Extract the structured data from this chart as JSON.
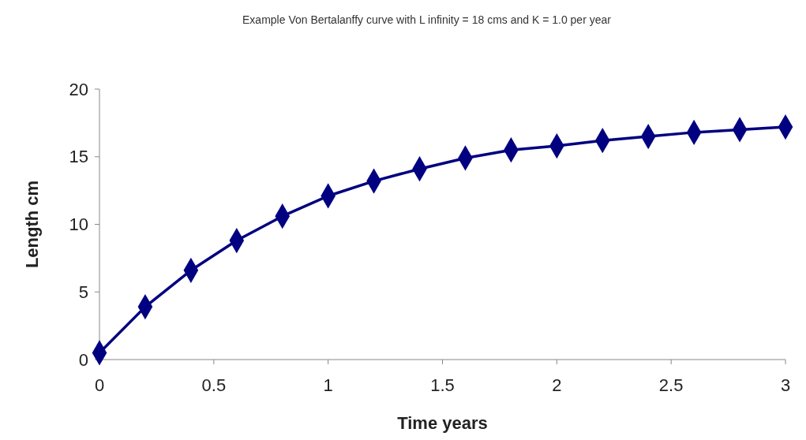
{
  "chart_data": {
    "type": "line",
    "title": "Example Von Bertalanffy curve with L infinity = 18 cms and K = 1.0 per year",
    "xlabel": "Time years",
    "ylabel": "Length cm",
    "x": [
      0,
      0.2,
      0.4,
      0.6,
      0.8,
      1,
      1.2,
      1.4,
      1.6,
      1.8,
      2,
      2.2,
      2.4,
      2.6,
      2.8,
      3
    ],
    "series": [
      {
        "color": "#000080",
        "values": [
          0.5,
          3.9,
          6.6,
          8.8,
          10.6,
          12.1,
          13.2,
          14.1,
          14.9,
          15.5,
          15.8,
          16.2,
          16.5,
          16.8,
          17,
          17.2
        ]
      }
    ],
    "xlim": [
      0,
      3
    ],
    "xticks": [
      0,
      0.5,
      1,
      1.5,
      2,
      2.5,
      3
    ],
    "ylim": [
      0,
      20
    ],
    "yticks": [
      0,
      5,
      10,
      15,
      20
    ],
    "marker": "diamond",
    "line_style": "solid"
  }
}
